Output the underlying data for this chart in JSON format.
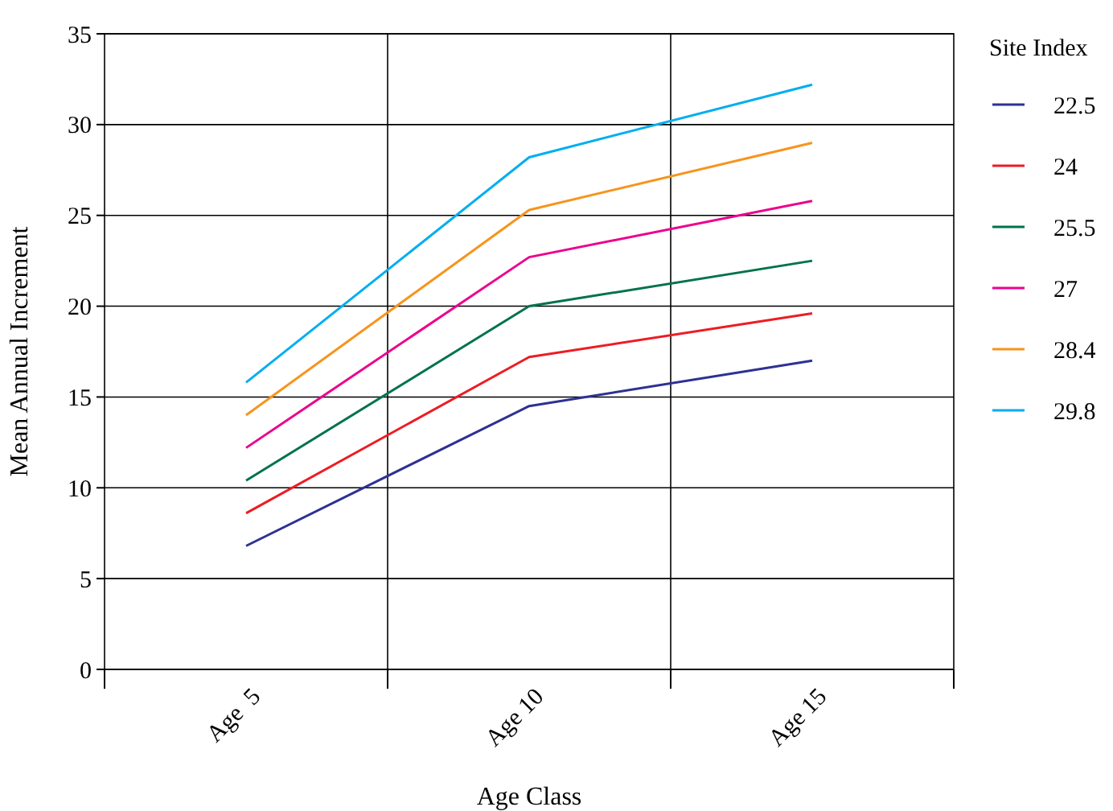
{
  "chart_data": {
    "type": "line",
    "xlabel": "Age Class",
    "ylabel": "Mean Annual Increment",
    "legend_title": "Site Index",
    "categories": [
      "Age  5",
      "Age 10",
      "Age 15"
    ],
    "series": [
      {
        "name": "22.5",
        "color": "#2e3192",
        "values": [
          6.8,
          14.5,
          17.0
        ]
      },
      {
        "name": "24",
        "color": "#ed1c24",
        "values": [
          8.6,
          17.2,
          19.6
        ]
      },
      {
        "name": "25.5",
        "color": "#00734a",
        "values": [
          10.4,
          20.0,
          22.5
        ]
      },
      {
        "name": "27",
        "color": "#ec008c",
        "values": [
          12.2,
          22.7,
          25.8
        ]
      },
      {
        "name": "28.4",
        "color": "#f7941d",
        "values": [
          14.0,
          25.3,
          29.0
        ]
      },
      {
        "name": "29.8",
        "color": "#00aeef",
        "values": [
          15.8,
          28.2,
          32.2
        ]
      }
    ],
    "ylim": [
      0,
      35
    ],
    "yticks": [
      0,
      5,
      10,
      15,
      20,
      25,
      30,
      35
    ],
    "grid": true,
    "legend": "top right",
    "marker": "none",
    "line_style": "solid"
  }
}
